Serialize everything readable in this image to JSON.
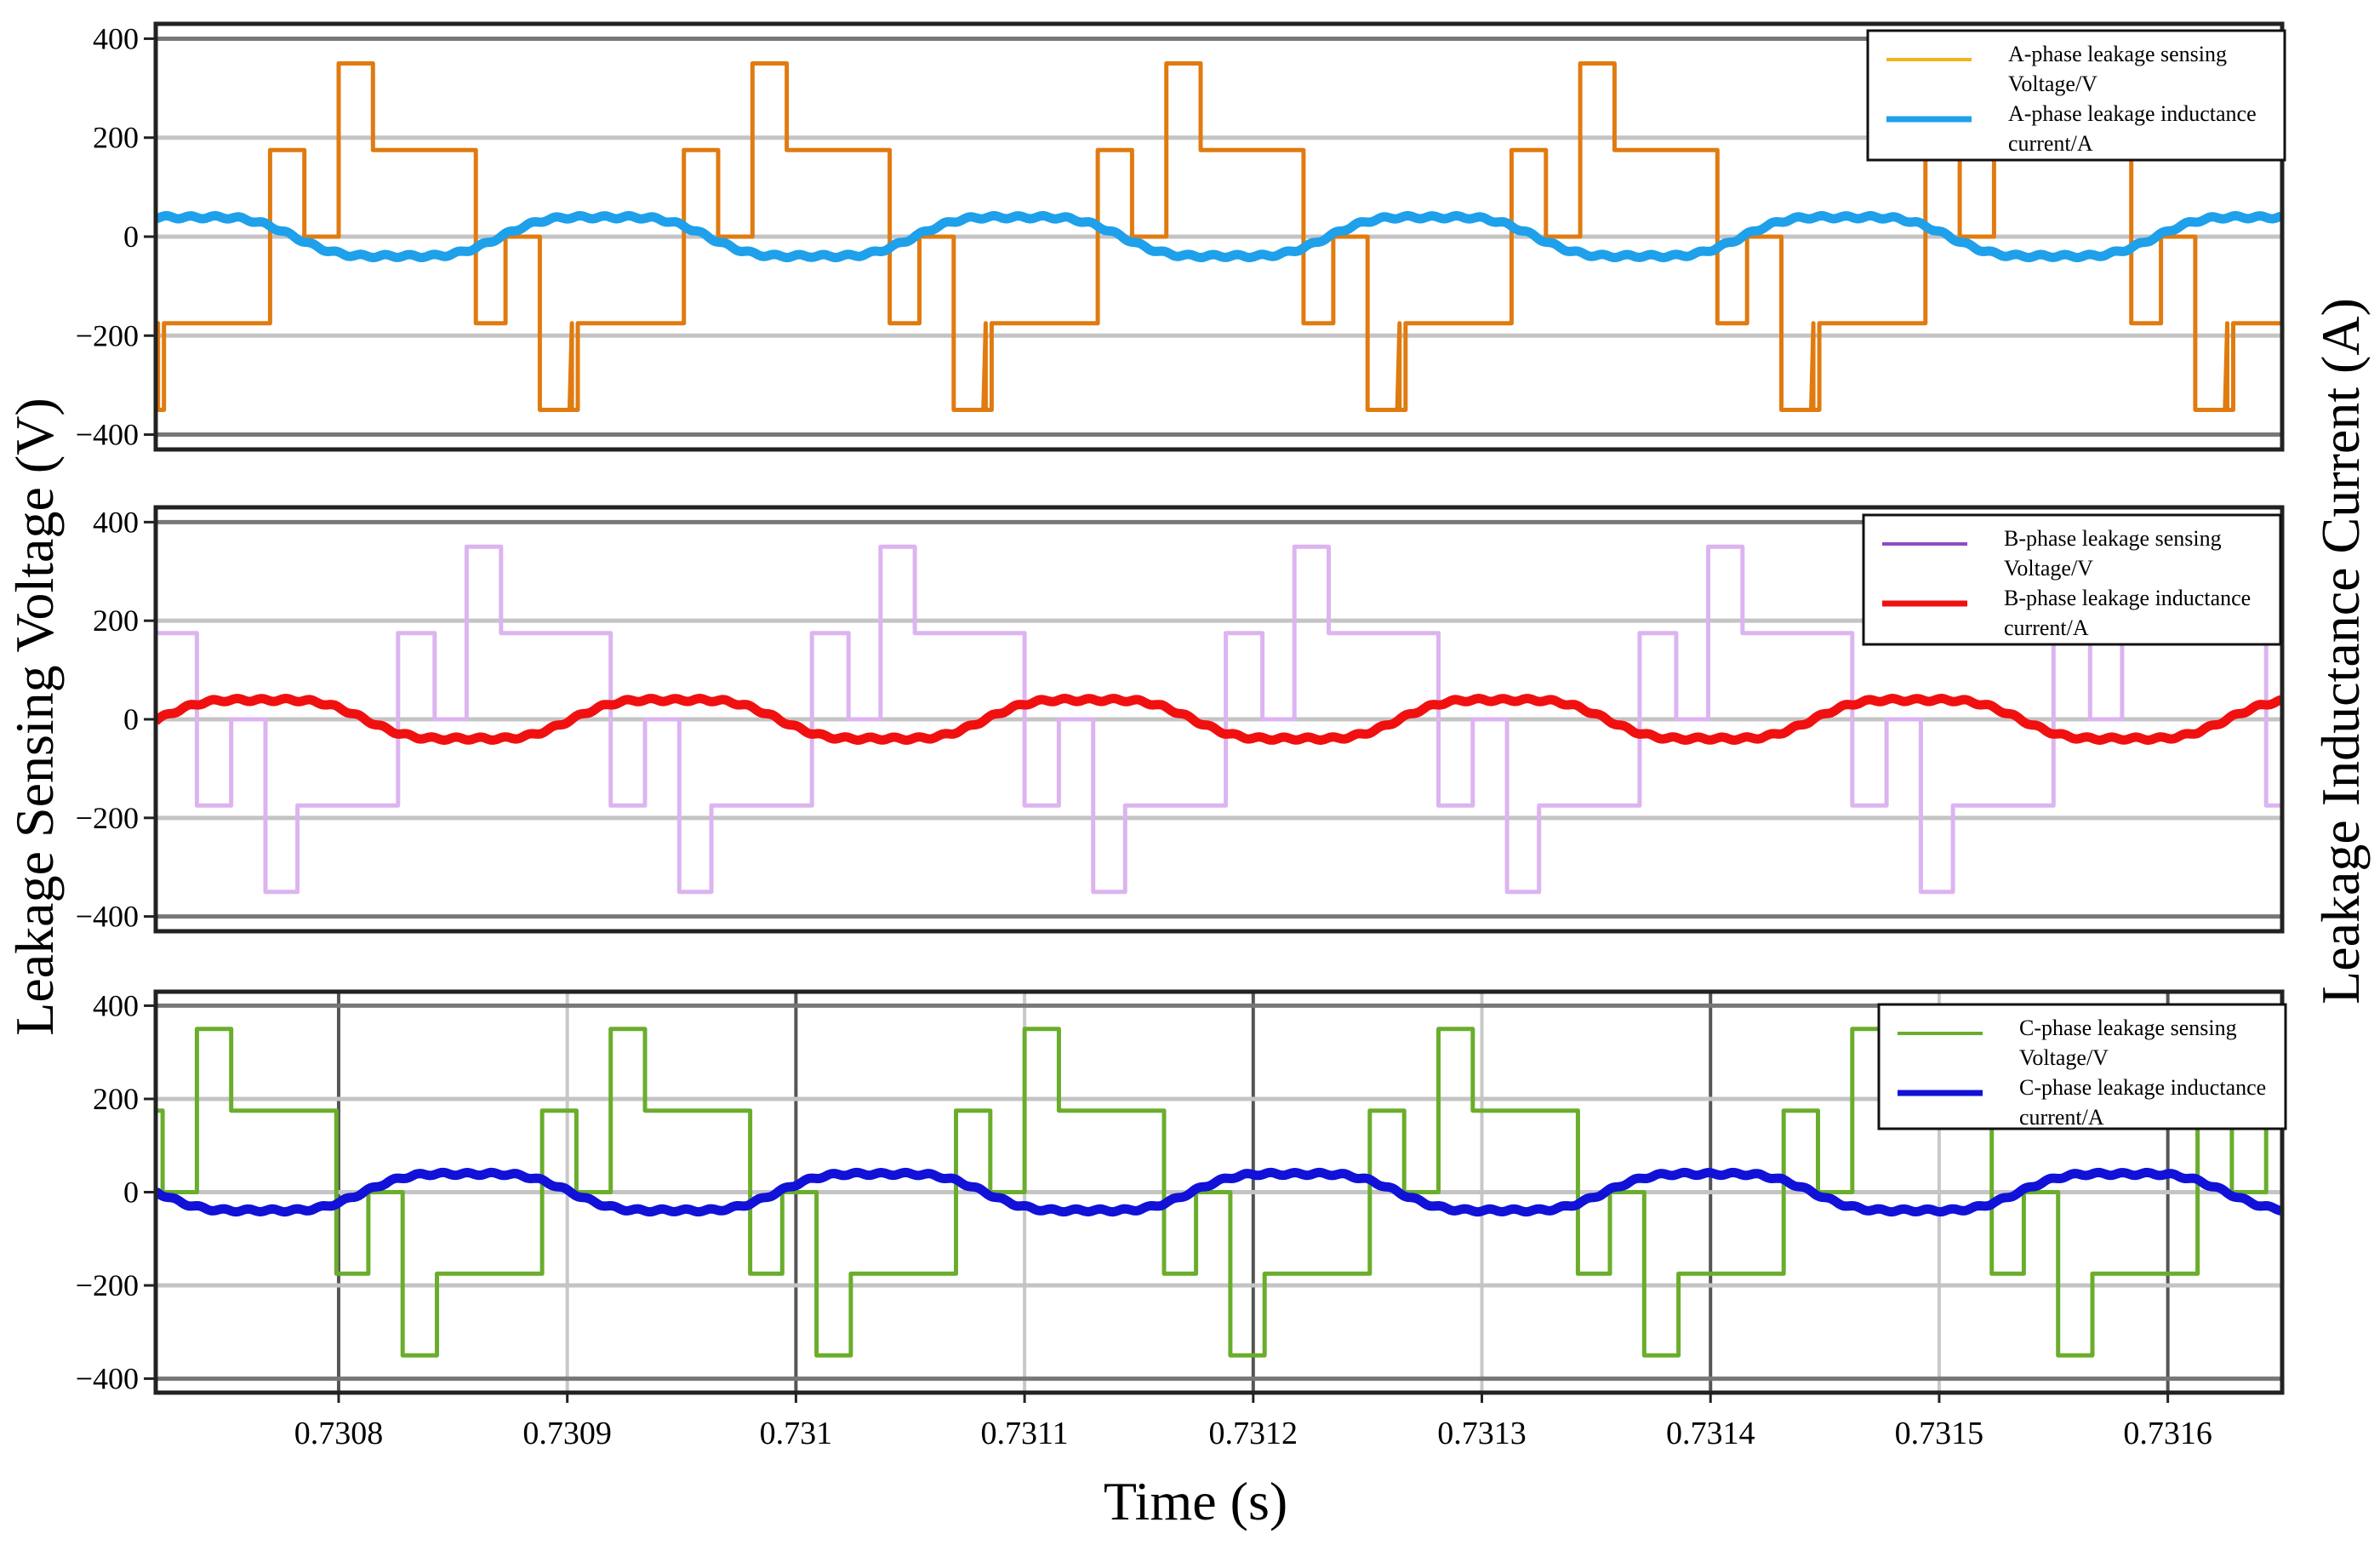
{
  "figure": {
    "y_left_label": "Leakage Sensing Voltage (V)",
    "y_right_label": "Leakage Inductance Current (A)",
    "x_label": "Time (s)"
  },
  "chart_data": [
    {
      "type": "line",
      "panel": "A",
      "xlim": [
        0.73072,
        0.73165
      ],
      "ylim": [
        -430,
        430
      ],
      "yticks": [
        400,
        200,
        0,
        -200,
        -400
      ],
      "ytick_labels": [
        "400",
        "200",
        "0",
        "−200",
        "−400"
      ],
      "legend_position": "top-right",
      "series": [
        {
          "name": "A-phase leakage sensing Voltage/V",
          "legend_lines": [
            "A-phase leakage sensing",
            "Voltage/V"
          ],
          "color": "#e07b10",
          "legend_color": "#f5b21c",
          "kind": "step",
          "period": 0.000181,
          "phase0": 0.73072,
          "offset": 0.0,
          "segments": [
            [
              0.0,
              -350
            ],
            [
              3.6e-06,
              -175
            ],
            [
              5e-05,
              175
            ],
            [
              6.5e-05,
              0
            ],
            [
              8e-05,
              350
            ],
            [
              9.5e-05,
              175
            ],
            [
              0.00014,
              -175
            ],
            [
              0.000153,
              0
            ],
            [
              0.000168,
              -350
            ],
            [
              0.000182,
              -175
            ]
          ]
        },
        {
          "name": "A-phase leakage inductance current/A",
          "legend_lines": [
            "A-phase leakage inductance",
            "current/A"
          ],
          "color": "#1ea0ea",
          "legend_color": "#1ea0ea",
          "kind": "sine",
          "period": 0.000181,
          "amplitude": 45,
          "phase_ref": 0.73069
        }
      ]
    },
    {
      "type": "line",
      "panel": "B",
      "xlim": [
        0.73072,
        0.73165
      ],
      "ylim": [
        -430,
        430
      ],
      "yticks": [
        400,
        200,
        0,
        -200,
        -400
      ],
      "ytick_labels": [
        "400",
        "200",
        "0",
        "−200",
        "−400"
      ],
      "legend_position": "top-right",
      "series": [
        {
          "name": "B-phase leakage sensing Voltage/V",
          "legend_lines": [
            "B-phase leakage sensing",
            "Voltage/V"
          ],
          "color": "#dcb4f0",
          "legend_color": "#8e4cc2",
          "kind": "step",
          "period": 0.000181,
          "phase0": 0.73072,
          "offset": 0.0,
          "segments": [
            [
              0.0,
              175
            ],
            [
              1.8e-05,
              -175
            ],
            [
              3.3e-05,
              0
            ],
            [
              4.8e-05,
              -350
            ],
            [
              6.2e-05,
              -175
            ],
            [
              0.000106,
              175
            ],
            [
              0.000122,
              0
            ],
            [
              0.000136,
              350
            ],
            [
              0.000151,
              175
            ],
            [
              0.000182,
              175
            ]
          ]
        },
        {
          "name": "B-phase leakage inductance current/A",
          "legend_lines": [
            "B-phase leakage inductance",
            "current/A"
          ],
          "color": "#f01010",
          "legend_color": "#f01010",
          "kind": "sine",
          "period": 0.000181,
          "amplitude": 45,
          "phase_ref": 0.73054
        }
      ]
    },
    {
      "type": "line",
      "panel": "C",
      "xlim": [
        0.73072,
        0.73165
      ],
      "ylim": [
        -430,
        430
      ],
      "yticks": [
        400,
        200,
        0,
        -200,
        -400
      ],
      "ytick_labels": [
        "400",
        "200",
        "0",
        "−200",
        "−400"
      ],
      "xticks": [
        0.7308,
        0.7309,
        0.731,
        0.7311,
        0.7312,
        0.7313,
        0.7314,
        0.7315,
        0.7316
      ],
      "xtick_labels": [
        "0.7308",
        "0.7309",
        "0.731",
        "0.7311",
        "0.7312",
        "0.7313",
        "0.7314",
        "0.7315",
        "0.7316"
      ],
      "legend_position": "top-right",
      "series": [
        {
          "name": "C-phase leakage sensing Voltage/V",
          "legend_lines": [
            "C-phase leakage sensing",
            "Voltage/V"
          ],
          "color": "#6aad2c",
          "legend_color": "#6aad2c",
          "kind": "step",
          "period": 0.000181,
          "phase0": 0.73072,
          "offset": 0.0,
          "segments": [
            [
              0.0,
              175
            ],
            [
              3e-06,
              0
            ],
            [
              1.8e-05,
              350
            ],
            [
              3.3e-05,
              175
            ],
            [
              7.9e-05,
              -175
            ],
            [
              9.3e-05,
              0
            ],
            [
              0.000108,
              -350
            ],
            [
              0.000123,
              -175
            ],
            [
              0.000169,
              175
            ],
            [
              0.000182,
              175
            ]
          ]
        },
        {
          "name": "C-phase leakage inductance current/A",
          "legend_lines": [
            "C-phase leakage inductance",
            "current/A"
          ],
          "color": "#1111d8",
          "legend_color": "#1111d8",
          "kind": "sine",
          "period": 0.000181,
          "amplitude": 45,
          "phase_ref": 0.73063
        }
      ]
    }
  ]
}
